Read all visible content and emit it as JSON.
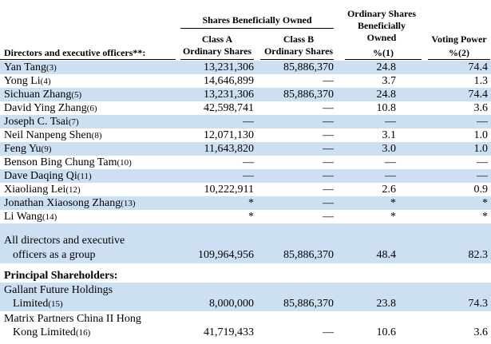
{
  "header": {
    "group_shares": "Shares Beneficially Owned",
    "col_ord": "Ordinary Shares Beneficially Owned",
    "col_ord_line1": "Ordinary Shares",
    "col_ord_line2": "Beneficially",
    "col_ord_line3": "Owned",
    "col_vp": "Voting Power",
    "class_a_line1": "Class A",
    "class_a_line2": "Ordinary Shares",
    "class_b_line1": "Class B",
    "class_b_line2": "Ordinary Shares",
    "pct1": "%(1)",
    "pct2": "%(2)",
    "directors": "Directors and executive officers**:"
  },
  "rows": [
    {
      "name": "Yan Tang",
      "note": "(3)",
      "a": "13,231,306",
      "b": "85,886,370",
      "p": "24.8",
      "v": "74.4"
    },
    {
      "name": "Yong Li",
      "note": "(4)",
      "a": "14,646,899",
      "b": "—",
      "p": "3.7",
      "v": "1.3"
    },
    {
      "name": "Sichuan Zhang",
      "note": "(5)",
      "a": "13,231,306",
      "b": "85,886,370",
      "p": "24.8",
      "v": "74.4"
    },
    {
      "name": "David Ying Zhang",
      "note": "(6)",
      "a": "42,598,741",
      "b": "—",
      "p": "10.8",
      "v": "3.6"
    },
    {
      "name": "Joseph C. Tsai",
      "note": "(7)",
      "a": "—",
      "b": "—",
      "p": "—",
      "v": "—"
    },
    {
      "name": "Neil Nanpeng Shen",
      "note": "(8)",
      "a": "12,071,130",
      "b": "—",
      "p": "3.1",
      "v": "1.0"
    },
    {
      "name": "Feng Yu",
      "note": "(9)",
      "a": "11,643,820",
      "b": "—",
      "p": "3.0",
      "v": "1.0"
    },
    {
      "name": "Benson Bing Chung Tam",
      "note": "(10)",
      "a": "—",
      "b": "—",
      "p": "—",
      "v": "—"
    },
    {
      "name": "Dave Daqing Qi",
      "note": "(11)",
      "a": "—",
      "b": "—",
      "p": "—",
      "v": "—"
    },
    {
      "name": "Xiaoliang Lei",
      "note": "(12)",
      "a": "10,222,911",
      "b": "—",
      "p": "2.6",
      "v": "0.9"
    },
    {
      "name": "Jonathan Xiaosong Zhang",
      "note": "(13)",
      "a": "*",
      "b": "—",
      "p": "*",
      "v": "*"
    },
    {
      "name": "Li Wang",
      "note": "(14)",
      "a": "*",
      "b": "—",
      "p": "*",
      "v": "*"
    }
  ],
  "group_row": {
    "line1": "All directors and executive",
    "line2": "officers as a group",
    "a": "109,964,956",
    "b": "85,886,370",
    "p": "48.4",
    "v": "82.3"
  },
  "principal": {
    "heading": "Principal Shareholders:",
    "gallant_line1": "Gallant Future Holdings",
    "gallant_line2": "Limited",
    "gallant_note": "(15)",
    "gallant_a": "8,000,000",
    "gallant_b": "85,886,370",
    "gallant_p": "23.8",
    "gallant_v": "74.3",
    "matrix_line1": "Matrix Partners China II Hong",
    "matrix_line2": "Kong Limited",
    "matrix_note": "(16)",
    "matrix_a": "41,719,433",
    "matrix_b": "—",
    "matrix_p": "10.6",
    "matrix_v": "3.6"
  },
  "colors": {
    "shade": "#cce0f2"
  }
}
